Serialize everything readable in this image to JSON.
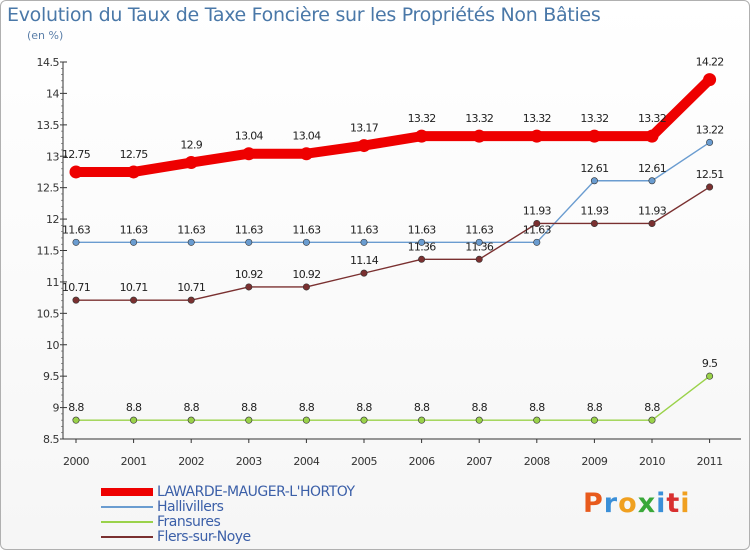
{
  "chart_data": {
    "type": "line",
    "title": "Evolution du Taux de Taxe Foncière sur les Propriétés Non Bâties",
    "ylabel": "(en %)",
    "xlabel": "",
    "x": [
      "2000",
      "2001",
      "2002",
      "2003",
      "2004",
      "2005",
      "2006",
      "2007",
      "2008",
      "2009",
      "2010",
      "2011"
    ],
    "ylim": [
      8.5,
      14.5
    ],
    "yticks": [
      "8.5",
      "9",
      "9.5",
      "10",
      "10.5",
      "11",
      "11.5",
      "12",
      "12.5",
      "13",
      "13.5",
      "14",
      "14.5"
    ],
    "grid": false,
    "legend_position": "bottom-left",
    "series": [
      {
        "name": "LAWARDE-MAUGER-L'HORTOY",
        "color": "#ee0000",
        "values": [
          12.75,
          12.75,
          12.9,
          13.04,
          13.04,
          13.17,
          13.32,
          13.32,
          13.32,
          13.32,
          13.32,
          14.22
        ],
        "labels": [
          "12.75",
          "12.75",
          "12.9",
          "13.04",
          "13.04",
          "13.17",
          "13.32",
          "13.32",
          "13.32",
          "13.32",
          "13.32",
          "14.22"
        ]
      },
      {
        "name": "Hallivillers",
        "color": "#6a9cd0",
        "values": [
          11.63,
          11.63,
          11.63,
          11.63,
          11.63,
          11.63,
          11.63,
          11.63,
          11.63,
          12.61,
          12.61,
          13.22
        ],
        "labels": [
          "11.63",
          "11.63",
          "11.63",
          "11.63",
          "11.63",
          "11.63",
          "11.63",
          "11.63",
          "11.63",
          "12.61",
          "12.61",
          "13.22"
        ]
      },
      {
        "name": "Fransures",
        "color": "#9ad24a",
        "values": [
          8.8,
          8.8,
          8.8,
          8.8,
          8.8,
          8.8,
          8.8,
          8.8,
          8.8,
          8.8,
          8.8,
          9.5
        ],
        "labels": [
          "8.8",
          "8.8",
          "8.8",
          "8.8",
          "8.8",
          "8.8",
          "8.8",
          "8.8",
          "8.8",
          "8.8",
          "8.8",
          "9.5"
        ]
      },
      {
        "name": "Flers-sur-Noye",
        "color": "#7a3030",
        "values": [
          10.71,
          10.71,
          10.71,
          10.92,
          10.92,
          11.14,
          11.36,
          11.36,
          11.93,
          11.93,
          11.93,
          12.51
        ],
        "labels": [
          "10.71",
          "10.71",
          "10.71",
          "10.92",
          "10.92",
          "11.14",
          "11.36",
          "11.36",
          "11.93",
          "11.93",
          "11.93",
          "12.51"
        ]
      }
    ]
  },
  "logo": {
    "text": "Proxiti",
    "letter_colors": [
      "#e85a1c",
      "#3a8fd8",
      "#f0a020",
      "#3aa83a",
      "#3a8fd8",
      "#d83030",
      "#f0a020"
    ]
  }
}
